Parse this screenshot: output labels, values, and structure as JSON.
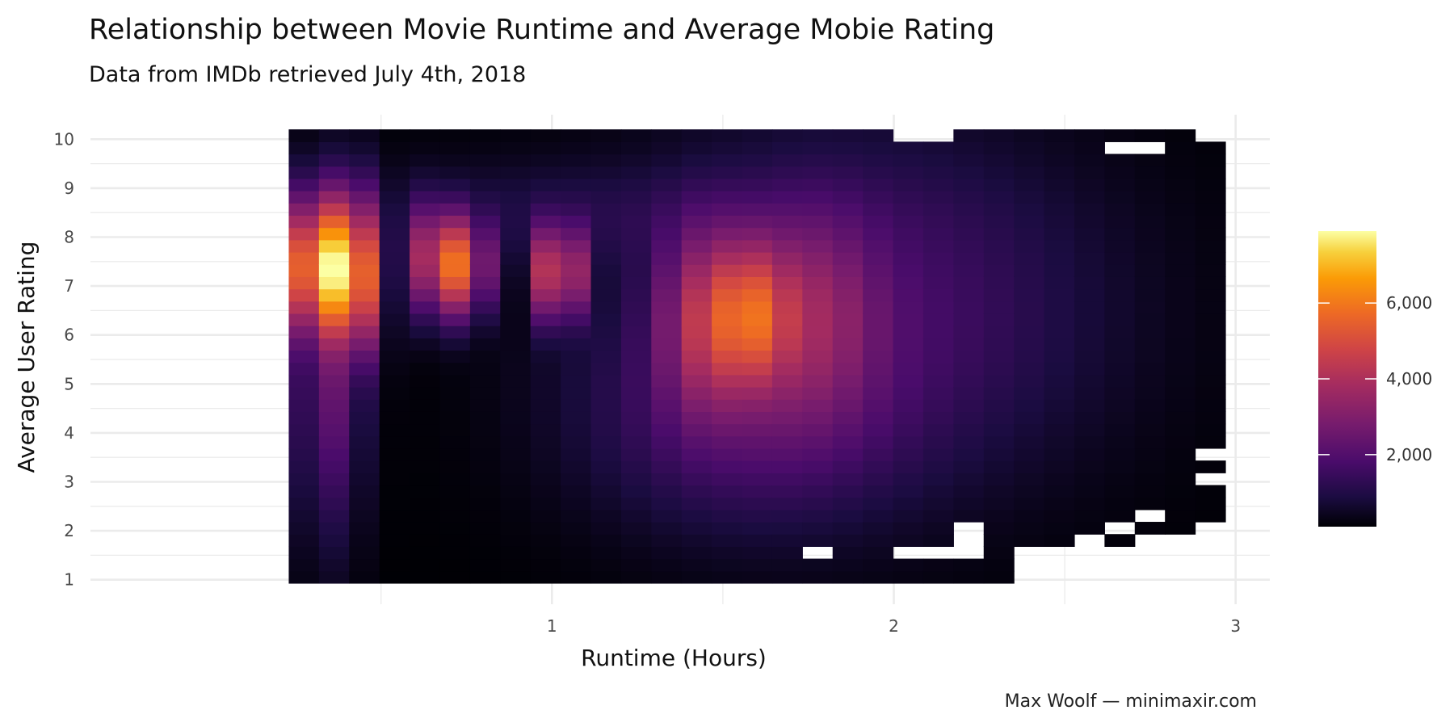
{
  "chart_data": {
    "type": "heatmap",
    "title": "Relationship between Movie Runtime and Average Mobie Rating",
    "subtitle": "Data from IMDb retrieved July 4th, 2018",
    "xlabel": "Runtime (Hours)",
    "ylabel": "Average User Rating",
    "caption": "Max Woolf — minimaxir.com",
    "xlim": [
      -0.35,
      3.1
    ],
    "ylim": [
      0.5,
      10.5
    ],
    "x_ticks": [
      1,
      2,
      3
    ],
    "y_ticks": [
      1,
      2,
      3,
      4,
      5,
      6,
      7,
      8,
      9,
      10
    ],
    "x_range": [
      0.23,
      2.97
    ],
    "y_range": [
      0.93,
      10.2
    ],
    "bins_x": 31,
    "bins_y": 37,
    "color_scale": "inferno",
    "fill_range": [
      0,
      8000
    ],
    "legend": {
      "position": "right",
      "ticks": [
        2000,
        4000,
        6000
      ],
      "tick_labels": [
        "2,000",
        "4,000",
        "6,000"
      ]
    },
    "grid": true,
    "hotspots": [
      {
        "x": 0.33,
        "y": 7.4,
        "count": 8000
      },
      {
        "x": 0.42,
        "y": 7.3,
        "count": 5000
      },
      {
        "x": 0.73,
        "y": 7.5,
        "count": 4800
      },
      {
        "x": 1.02,
        "y": 7.3,
        "count": 4000
      },
      {
        "x": 1.58,
        "y": 6.4,
        "count": 3400
      }
    ],
    "empty_cells": [
      {
        "x": 2.05,
        "y": 10.1
      },
      {
        "x": 2.14,
        "y": 10.1
      },
      {
        "x": 2.67,
        "y": 9.8
      },
      {
        "x": 2.76,
        "y": 9.8
      },
      {
        "x": 2.93,
        "y": 10.1
      },
      {
        "x": 2.93,
        "y": 3.5
      },
      {
        "x": 2.93,
        "y": 3.0
      },
      {
        "x": 2.93,
        "y": 2.1
      },
      {
        "x": 2.93,
        "y": 1.8
      },
      {
        "x": 2.85,
        "y": 1.8
      },
      {
        "x": 2.76,
        "y": 1.8
      },
      {
        "x": 2.58,
        "y": 1.8
      },
      {
        "x": 2.76,
        "y": 2.3
      },
      {
        "x": 2.67,
        "y": 2.1
      },
      {
        "x": 2.22,
        "y": 2.1
      },
      {
        "x": 2.22,
        "y": 1.8
      },
      {
        "x": 2.4,
        "y": 1.5
      },
      {
        "x": 2.49,
        "y": 1.5
      },
      {
        "x": 2.58,
        "y": 1.5
      },
      {
        "x": 2.67,
        "y": 1.5
      },
      {
        "x": 2.76,
        "y": 1.5
      },
      {
        "x": 2.85,
        "y": 1.5
      },
      {
        "x": 2.93,
        "y": 1.5
      },
      {
        "x": 2.05,
        "y": 1.5
      },
      {
        "x": 2.14,
        "y": 1.5
      },
      {
        "x": 2.22,
        "y": 1.5
      },
      {
        "x": 1.78,
        "y": 1.5
      },
      {
        "x": 2.4,
        "y": 1.2
      },
      {
        "x": 2.49,
        "y": 1.2
      },
      {
        "x": 2.58,
        "y": 1.2
      },
      {
        "x": 2.67,
        "y": 1.2
      },
      {
        "x": 2.85,
        "y": 1.2
      },
      {
        "x": 2.93,
        "y": 1.2
      },
      {
        "x": 2.4,
        "y": 0.95
      },
      {
        "x": 2.49,
        "y": 0.95
      },
      {
        "x": 2.58,
        "y": 0.95
      },
      {
        "x": 2.67,
        "y": 0.95
      },
      {
        "x": 2.85,
        "y": 0.95
      },
      {
        "x": 2.93,
        "y": 0.95
      },
      {
        "x": 2.76,
        "y": 1.2
      }
    ]
  }
}
